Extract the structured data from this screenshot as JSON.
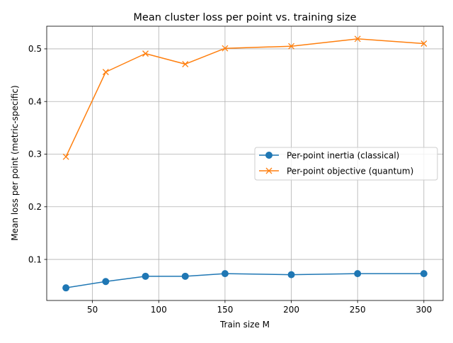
{
  "chart_data": {
    "type": "line",
    "title": "Mean cluster loss per point vs. training size",
    "xlabel": "Train size M",
    "ylabel": "Mean loss per point (metric-specific)",
    "x": [
      30,
      60,
      90,
      120,
      150,
      200,
      250,
      300
    ],
    "xlim": [
      15.5,
      314.5
    ],
    "ylim": [
      0.022,
      0.543
    ],
    "xticks": [
      50,
      100,
      150,
      200,
      250,
      300
    ],
    "yticks": [
      0.1,
      0.2,
      0.3,
      0.4,
      0.5
    ],
    "xtick_labels": [
      "50",
      "100",
      "150",
      "200",
      "250",
      "300"
    ],
    "ytick_labels": [
      "0.1",
      "0.2",
      "0.3",
      "0.4",
      "0.5"
    ],
    "grid": true,
    "legend_position": "center-right",
    "series": [
      {
        "name": "Per-point inertia (classical)",
        "color": "#1f77b4",
        "marker": "circle",
        "values": [
          0.046,
          0.058,
          0.068,
          0.068,
          0.073,
          0.071,
          0.073,
          0.073
        ]
      },
      {
        "name": "Per-point objective (quantum)",
        "color": "#ff7f0e",
        "marker": "x",
        "values": [
          0.295,
          0.456,
          0.491,
          0.471,
          0.501,
          0.505,
          0.519,
          0.51
        ]
      }
    ]
  }
}
